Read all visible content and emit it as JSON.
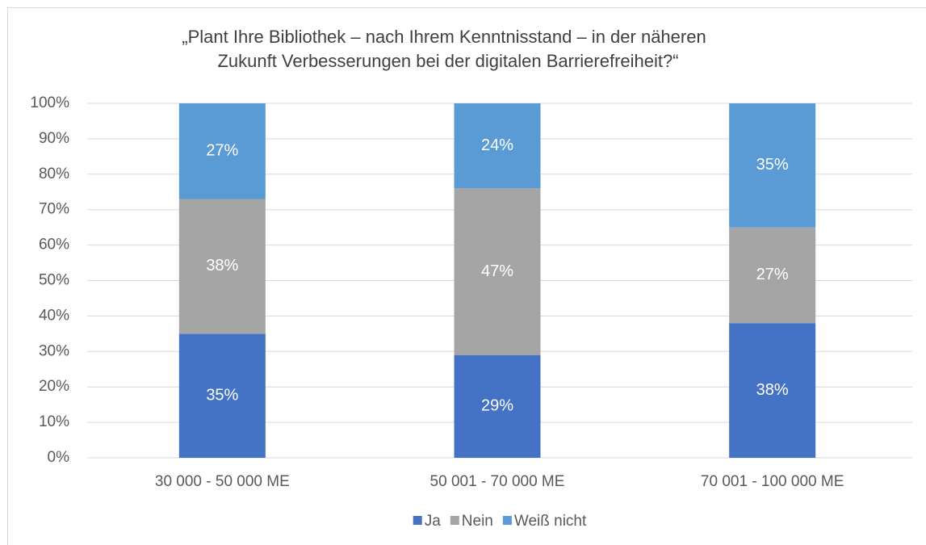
{
  "chart_data": {
    "type": "stacked_bar",
    "title": [
      "„Plant Ihre Bibliothek – nach Ihrem Kenntnisstand – in der näheren",
      "Zukunft Verbesserungen bei der digitalen Barrierefreiheit?“"
    ],
    "categories": [
      "30 000 - 50 000 ME",
      "50 001 - 70 000 ME",
      "70 001 - 100 000 ME"
    ],
    "series": [
      {
        "name": "Ja",
        "color": "#4472c4",
        "values": [
          35,
          29,
          38
        ]
      },
      {
        "name": "Nein",
        "color": "#a5a5a5",
        "values": [
          38,
          47,
          27
        ]
      },
      {
        "name": "Weiß nicht",
        "color": "#5b9bd5",
        "values": [
          27,
          24,
          35
        ]
      }
    ],
    "ylim": [
      0,
      100
    ],
    "yticks": [
      {
        "value": 0,
        "label": "0%"
      },
      {
        "value": 10,
        "label": "10%"
      },
      {
        "value": 20,
        "label": "20%"
      },
      {
        "value": 30,
        "label": "30%"
      },
      {
        "value": 40,
        "label": "40%"
      },
      {
        "value": 50,
        "label": "50%"
      },
      {
        "value": 60,
        "label": "60%"
      },
      {
        "value": 70,
        "label": "70%"
      },
      {
        "value": 80,
        "label": "80%"
      },
      {
        "value": 90,
        "label": "90%"
      },
      {
        "value": 100,
        "label": "100%"
      }
    ],
    "value_labels": [
      [
        "35%",
        "29%",
        "38%"
      ],
      [
        "38%",
        "47%",
        "27%"
      ],
      [
        "27%",
        "24%",
        "35%"
      ]
    ],
    "grid": true,
    "legend": "bottom"
  }
}
